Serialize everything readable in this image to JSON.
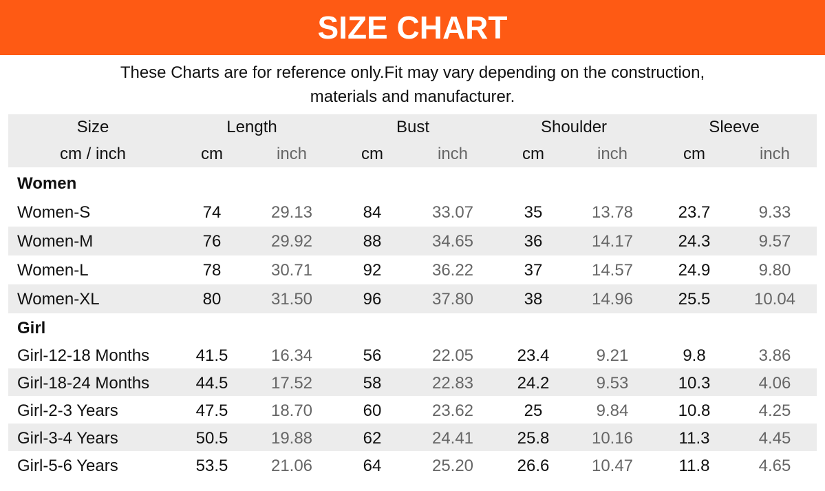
{
  "header": {
    "title": "SIZE CHART"
  },
  "note": [
    "These Charts are for reference only.Fit may vary depending on the construction,",
    "materials and manufacturer."
  ],
  "table": {
    "groups": [
      "Size",
      "Length",
      "Bust",
      "Shoulder",
      "Sleeve"
    ],
    "units": [
      "cm / inch",
      "cm",
      "inch",
      "cm",
      "inch",
      "cm",
      "inch",
      "cm",
      "inch"
    ],
    "sections": [
      {
        "title": "Women",
        "rows": [
          [
            "Women-S",
            "74",
            "29.13",
            "84",
            "33.07",
            "35",
            "13.78",
            "23.7",
            "9.33"
          ],
          [
            "Women-M",
            "76",
            "29.92",
            "88",
            "34.65",
            "36",
            "14.17",
            "24.3",
            "9.57"
          ],
          [
            "Women-L",
            "78",
            "30.71",
            "92",
            "36.22",
            "37",
            "14.57",
            "24.9",
            "9.80"
          ],
          [
            "Women-XL",
            "80",
            "31.50",
            "96",
            "37.80",
            "38",
            "14.96",
            "25.5",
            "10.04"
          ]
        ]
      },
      {
        "title": "Girl",
        "rows": [
          [
            "Girl-12-18 Months",
            "41.5",
            "16.34",
            "56",
            "22.05",
            "23.4",
            "9.21",
            "9.8",
            "3.86"
          ],
          [
            "Girl-18-24 Months",
            "44.5",
            "17.52",
            "58",
            "22.83",
            "24.2",
            "9.53",
            "10.3",
            "4.06"
          ],
          [
            "Girl-2-3 Years",
            "47.5",
            "18.70",
            "60",
            "23.62",
            "25",
            "9.84",
            "10.8",
            "4.25"
          ],
          [
            "Girl-3-4 Years",
            "50.5",
            "19.88",
            "62",
            "24.41",
            "25.8",
            "10.16",
            "11.3",
            "4.45"
          ],
          [
            "Girl-5-6 Years",
            "53.5",
            "21.06",
            "64",
            "25.20",
            "26.6",
            "10.47",
            "11.8",
            "4.65"
          ]
        ]
      }
    ]
  }
}
